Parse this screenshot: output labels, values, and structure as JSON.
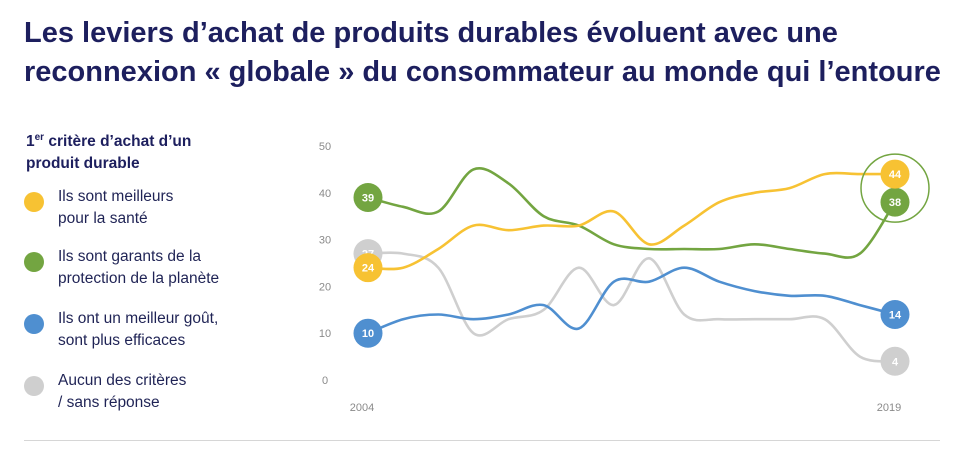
{
  "header": {
    "title_line1": "Les leviers d’achat de produits durables évoluent avec une",
    "title_line2": "reconnexion « globale » du consommateur au monde qui l’entoure"
  },
  "legend": {
    "title_sup": "er",
    "title_num": "1",
    "title_rest": " critère d’achat d’un",
    "title_line2": "produit durable",
    "items": [
      {
        "line1": "Ils sont meilleurs",
        "line2": "pour la santé",
        "color": "#f7c233"
      },
      {
        "line1": "Ils sont garants de la",
        "line2": "protection de la planète",
        "color": "#73a541"
      },
      {
        "line1": "Ils ont un meilleur goût,",
        "line2": "sont plus efficaces",
        "color": "#4f8fd0"
      },
      {
        "line1": "Aucun des critères",
        "line2": "/ sans réponse",
        "color": "#cfcfcf"
      }
    ]
  },
  "chart_data": {
    "type": "line",
    "ylim": [
      0,
      50
    ],
    "yticks": [
      "0",
      "10",
      "20",
      "30",
      "40",
      "50"
    ],
    "xlabels": [
      "2004",
      "2019"
    ],
    "x": [
      2004,
      2005,
      2006,
      2007,
      2008,
      2009,
      2010,
      2011,
      2012,
      2013,
      2014,
      2015,
      2016,
      2017,
      2018,
      2019
    ],
    "series": [
      {
        "name": "Ils sont meilleurs pour la santé",
        "color": "#f7c233",
        "values": [
          24,
          24,
          28,
          33,
          32,
          33,
          33,
          36,
          29,
          33,
          38,
          40,
          41,
          44,
          44,
          44
        ],
        "start_label": "24",
        "end_label": "44"
      },
      {
        "name": "Ils sont garants de la protection de la planète",
        "color": "#73a541",
        "values": [
          39,
          37,
          36,
          45,
          42,
          35,
          33,
          29,
          28,
          28,
          28,
          29,
          28,
          27,
          27,
          38
        ],
        "start_label": "39",
        "end_label": "38"
      },
      {
        "name": "Ils ont un meilleur goût, sont plus efficaces",
        "color": "#4f8fd0",
        "values": [
          10,
          13,
          14,
          13,
          14,
          16,
          11,
          21,
          21,
          24,
          21,
          19,
          18,
          18,
          16,
          14
        ],
        "start_label": "10",
        "end_label": "14"
      },
      {
        "name": "Aucun des critères / sans réponse",
        "color": "#cfcfcf",
        "values": [
          27,
          27,
          24,
          10,
          13,
          15,
          24,
          16,
          26,
          14,
          13,
          13,
          13,
          13,
          5,
          4
        ],
        "start_label": "27",
        "end_label": "4"
      }
    ],
    "highlight": {
      "year": 2019,
      "value": 41
    }
  }
}
